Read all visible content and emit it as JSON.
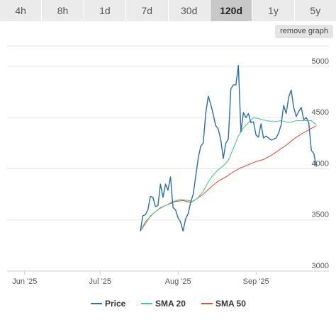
{
  "tabs": [
    {
      "label": "4h",
      "active": false
    },
    {
      "label": "8h",
      "active": false
    },
    {
      "label": "1d",
      "active": false
    },
    {
      "label": "7d",
      "active": false
    },
    {
      "label": "30d",
      "active": false
    },
    {
      "label": "120d",
      "active": true
    },
    {
      "label": "1y",
      "active": false
    },
    {
      "label": "5y",
      "active": false
    }
  ],
  "remove_graph_label": "remove graph",
  "chart_data": {
    "type": "line",
    "title": "",
    "xlabel": "",
    "ylabel": "",
    "xlim": [
      "2025-05-25",
      "2025-09-30"
    ],
    "ylim": [
      3000,
      5200
    ],
    "x_ticks": [
      {
        "date": "2025-06-01",
        "label": "Jun '25"
      },
      {
        "date": "2025-07-01",
        "label": "Jul '25"
      },
      {
        "date": "2025-08-01",
        "label": "Aug '25"
      },
      {
        "date": "2025-09-01",
        "label": "Sep '25"
      }
    ],
    "y_ticks": [
      {
        "value": 3000,
        "label": "3000"
      },
      {
        "value": 3500,
        "label": "3500"
      },
      {
        "value": 4000,
        "label": "4000"
      },
      {
        "value": 4500,
        "label": "4500"
      },
      {
        "value": 5000,
        "label": "5000"
      }
    ],
    "grid": true,
    "legend_position": "bottom",
    "series": [
      {
        "name": "Price",
        "color": "#2b6fa3",
        "points": [
          [
            "2025-07-17",
            3390
          ],
          [
            "2025-07-18",
            3540
          ],
          [
            "2025-07-19",
            3550
          ],
          [
            "2025-07-20",
            3600
          ],
          [
            "2025-07-21",
            3730
          ],
          [
            "2025-07-22",
            3720
          ],
          [
            "2025-07-23",
            3630
          ],
          [
            "2025-07-24",
            3640
          ],
          [
            "2025-07-25",
            3850
          ],
          [
            "2025-07-26",
            3720
          ],
          [
            "2025-07-27",
            3850
          ],
          [
            "2025-07-28",
            3790
          ],
          [
            "2025-07-29",
            3920
          ],
          [
            "2025-07-30",
            3620
          ],
          [
            "2025-07-31",
            3600
          ],
          [
            "2025-08-01",
            3520
          ],
          [
            "2025-08-02",
            3480
          ],
          [
            "2025-08-03",
            3390
          ],
          [
            "2025-08-04",
            3510
          ],
          [
            "2025-08-05",
            3560
          ],
          [
            "2025-08-06",
            3670
          ],
          [
            "2025-08-07",
            3750
          ],
          [
            "2025-08-08",
            3920
          ],
          [
            "2025-08-09",
            4100
          ],
          [
            "2025-08-10",
            4220
          ],
          [
            "2025-08-11",
            4250
          ],
          [
            "2025-08-12",
            4540
          ],
          [
            "2025-08-13",
            4710
          ],
          [
            "2025-08-14",
            4630
          ],
          [
            "2025-08-15",
            4530
          ],
          [
            "2025-08-16",
            4420
          ],
          [
            "2025-08-17",
            4390
          ],
          [
            "2025-08-18",
            4280
          ],
          [
            "2025-08-19",
            4100
          ],
          [
            "2025-08-20",
            4250
          ],
          [
            "2025-08-21",
            4290
          ],
          [
            "2025-08-22",
            4780
          ],
          [
            "2025-08-23",
            4820
          ],
          [
            "2025-08-24",
            4820
          ],
          [
            "2025-08-25",
            5010
          ],
          [
            "2025-08-26",
            4360
          ],
          [
            "2025-08-27",
            4550
          ],
          [
            "2025-08-28",
            4500
          ],
          [
            "2025-08-29",
            4540
          ],
          [
            "2025-08-30",
            4450
          ],
          [
            "2025-08-31",
            4460
          ],
          [
            "2025-09-01",
            4330
          ],
          [
            "2025-09-02",
            4310
          ],
          [
            "2025-09-03",
            4440
          ],
          [
            "2025-09-04",
            4300
          ],
          [
            "2025-09-05",
            4320
          ],
          [
            "2025-09-06",
            4300
          ],
          [
            "2025-09-07",
            4280
          ],
          [
            "2025-09-08",
            4290
          ],
          [
            "2025-09-09",
            4300
          ],
          [
            "2025-09-10",
            4350
          ],
          [
            "2025-09-11",
            4430
          ],
          [
            "2025-09-12",
            4620
          ],
          [
            "2025-09-13",
            4540
          ],
          [
            "2025-09-14",
            4700
          ],
          [
            "2025-09-15",
            4770
          ],
          [
            "2025-09-16",
            4600
          ],
          [
            "2025-09-17",
            4510
          ],
          [
            "2025-09-18",
            4560
          ],
          [
            "2025-09-19",
            4600
          ],
          [
            "2025-09-20",
            4480
          ],
          [
            "2025-09-21",
            4500
          ],
          [
            "2025-09-22",
            4450
          ],
          [
            "2025-09-23",
            4180
          ],
          [
            "2025-09-24",
            4150
          ],
          [
            "2025-09-25",
            4020
          ]
        ]
      },
      {
        "name": "SMA 20",
        "color": "#4dcb8a",
        "points": [
          [
            "2025-07-17",
            3390
          ],
          [
            "2025-07-19",
            3460
          ],
          [
            "2025-07-21",
            3540
          ],
          [
            "2025-07-24",
            3600
          ],
          [
            "2025-07-27",
            3640
          ],
          [
            "2025-07-30",
            3680
          ],
          [
            "2025-08-02",
            3700
          ],
          [
            "2025-08-05",
            3690
          ],
          [
            "2025-08-07",
            3680
          ],
          [
            "2025-08-09",
            3720
          ],
          [
            "2025-08-11",
            3780
          ],
          [
            "2025-08-13",
            3870
          ],
          [
            "2025-08-15",
            3940
          ],
          [
            "2025-08-17",
            3990
          ],
          [
            "2025-08-19",
            4030
          ],
          [
            "2025-08-21",
            4080
          ],
          [
            "2025-08-23",
            4200
          ],
          [
            "2025-08-25",
            4320
          ],
          [
            "2025-08-27",
            4400
          ],
          [
            "2025-08-29",
            4450
          ],
          [
            "2025-08-31",
            4500
          ],
          [
            "2025-09-02",
            4490
          ],
          [
            "2025-09-05",
            4470
          ],
          [
            "2025-09-08",
            4460
          ],
          [
            "2025-09-11",
            4470
          ],
          [
            "2025-09-14",
            4450
          ],
          [
            "2025-09-17",
            4470
          ],
          [
            "2025-09-20",
            4470
          ],
          [
            "2025-09-23",
            4470
          ],
          [
            "2025-09-25",
            4430
          ]
        ]
      },
      {
        "name": "SMA 50",
        "color": "#e2533d",
        "points": [
          [
            "2025-07-17",
            3390
          ],
          [
            "2025-07-19",
            3480
          ],
          [
            "2025-07-22",
            3560
          ],
          [
            "2025-07-25",
            3620
          ],
          [
            "2025-07-28",
            3650
          ],
          [
            "2025-07-31",
            3680
          ],
          [
            "2025-08-03",
            3690
          ],
          [
            "2025-08-06",
            3670
          ],
          [
            "2025-08-08",
            3700
          ],
          [
            "2025-08-11",
            3750
          ],
          [
            "2025-08-14",
            3820
          ],
          [
            "2025-08-17",
            3880
          ],
          [
            "2025-08-20",
            3920
          ],
          [
            "2025-08-23",
            3970
          ],
          [
            "2025-08-26",
            4010
          ],
          [
            "2025-08-29",
            4040
          ],
          [
            "2025-09-01",
            4070
          ],
          [
            "2025-09-04",
            4090
          ],
          [
            "2025-09-07",
            4130
          ],
          [
            "2025-09-10",
            4180
          ],
          [
            "2025-09-13",
            4230
          ],
          [
            "2025-09-16",
            4290
          ],
          [
            "2025-09-19",
            4340
          ],
          [
            "2025-09-22",
            4380
          ],
          [
            "2025-09-25",
            4420
          ]
        ]
      }
    ]
  }
}
